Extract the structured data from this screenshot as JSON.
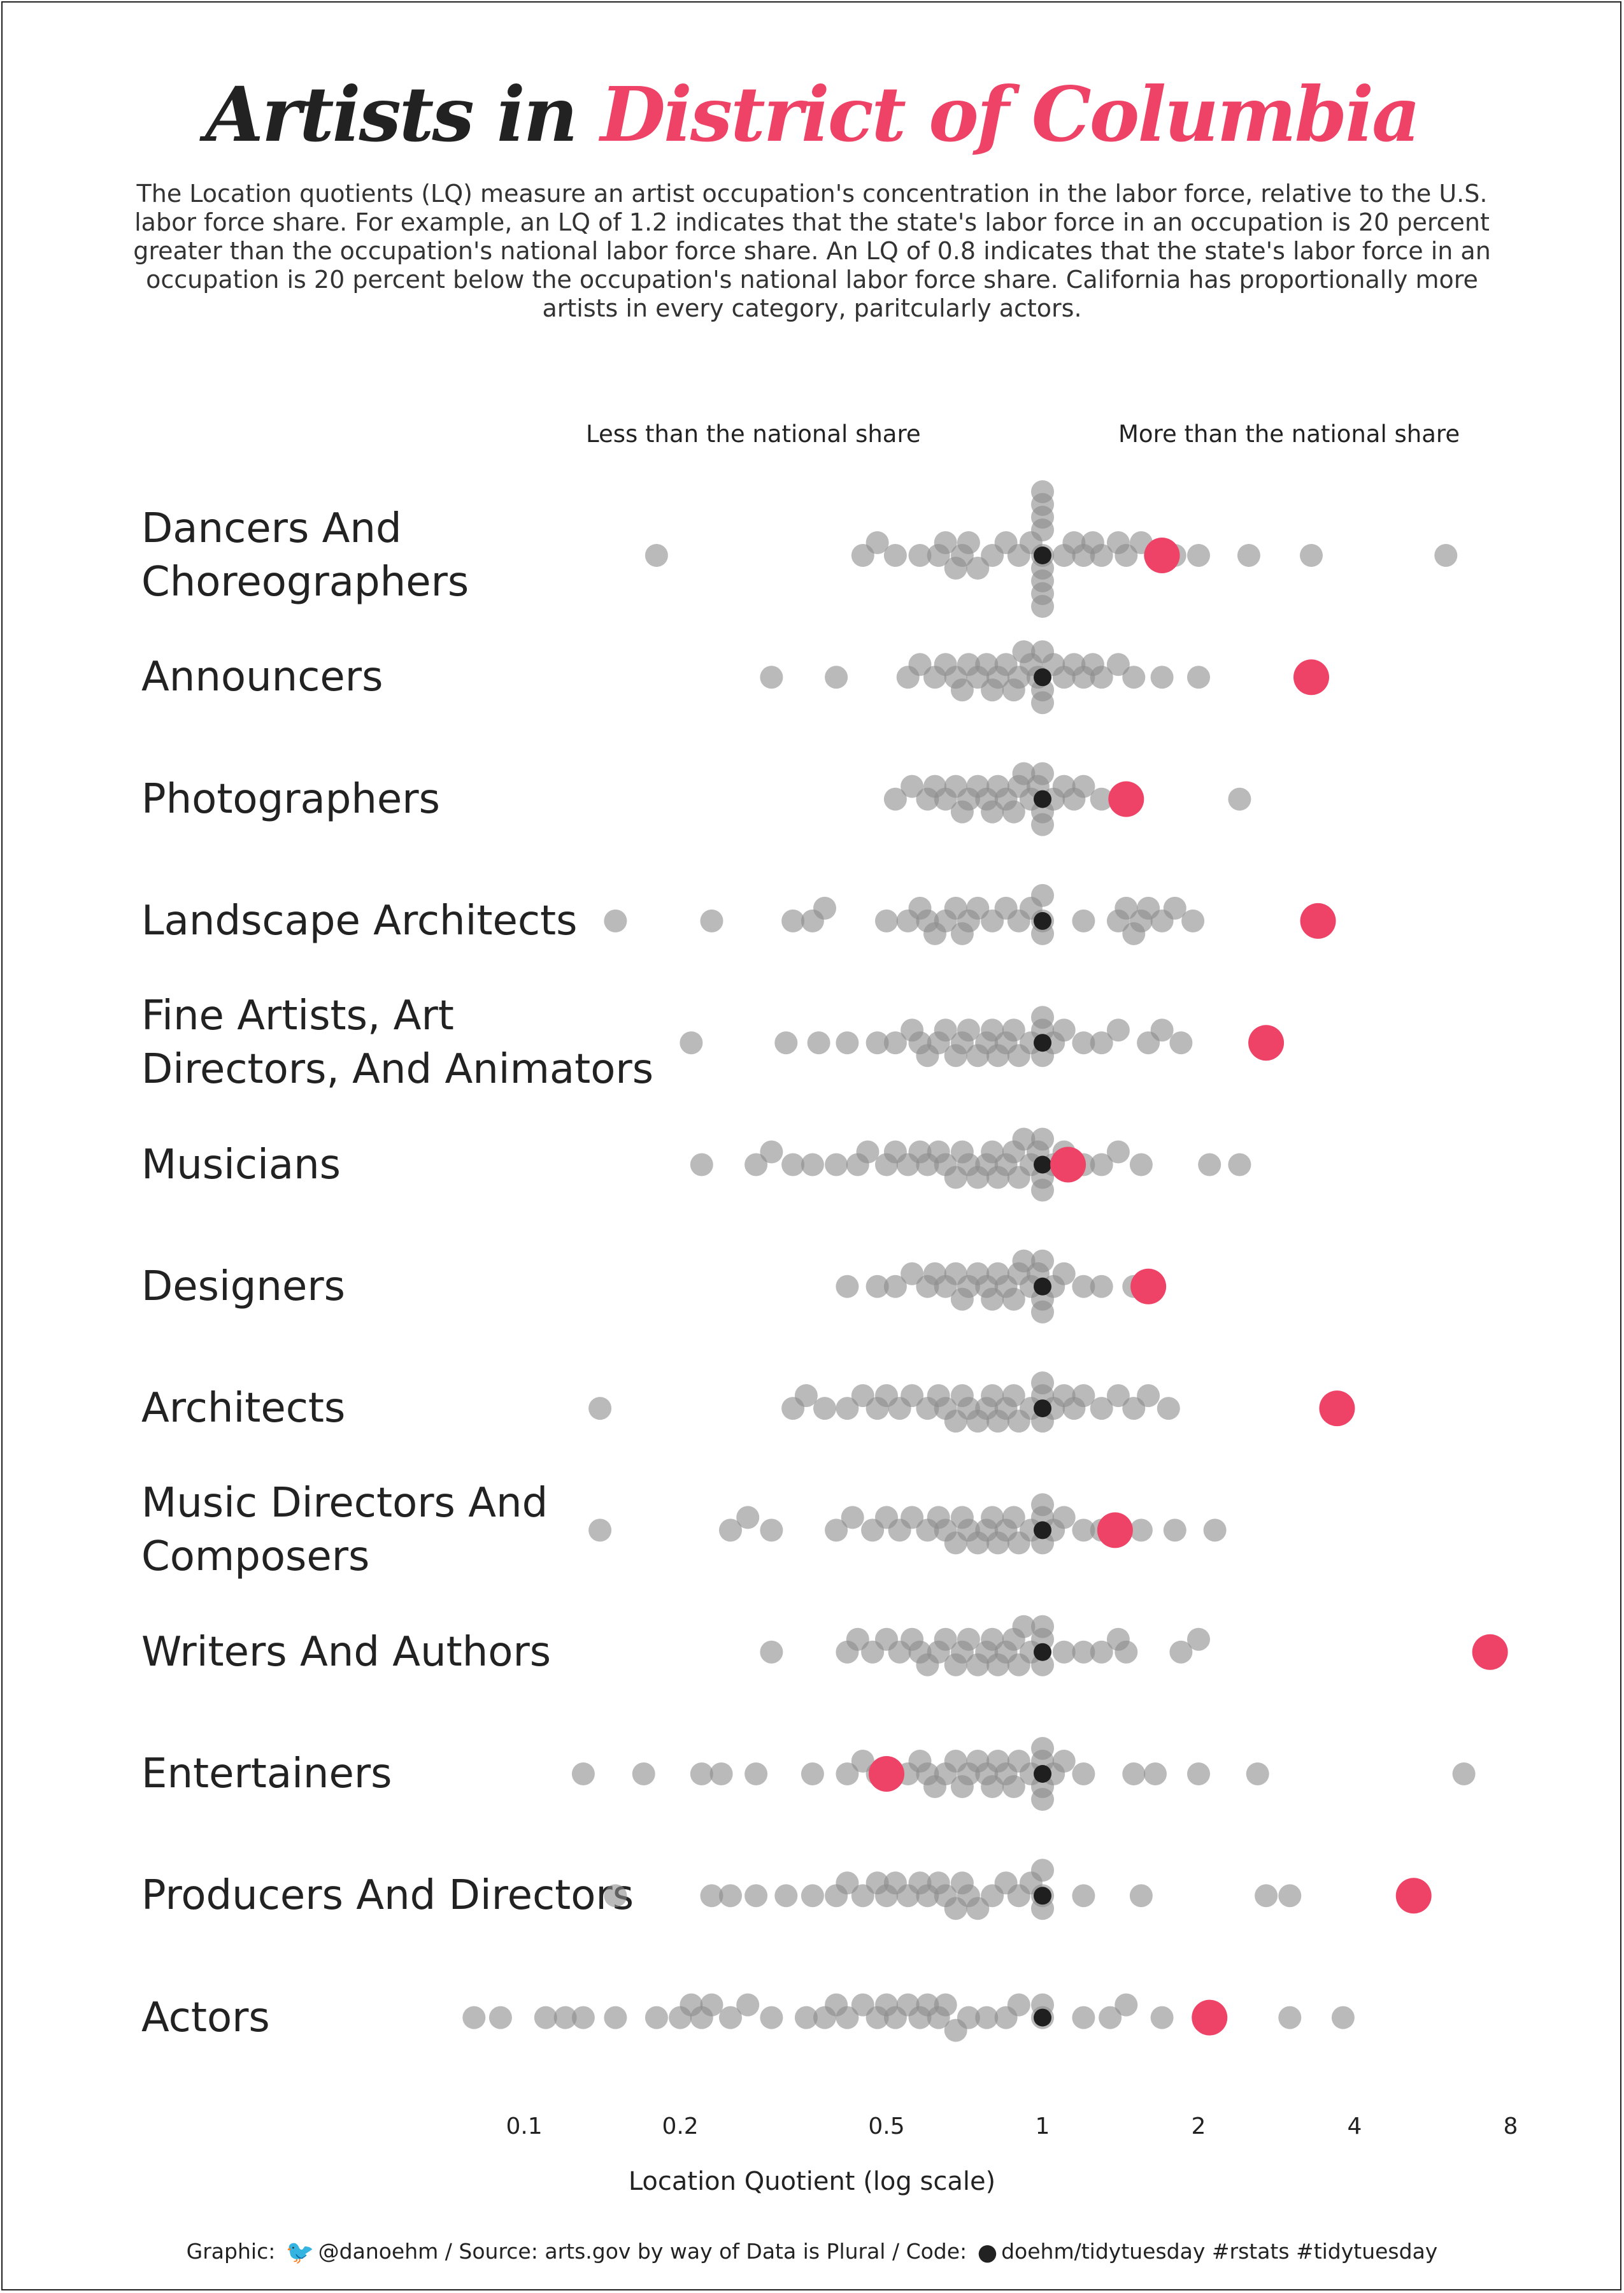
{
  "title": {
    "part1": "Artists in",
    "part2": "District of Columbia"
  },
  "subtitle": "The Location quotients (LQ) measure an artist occupation's concentration in the labor force, relative to the U.S. labor force share. For example, an LQ of 1.2 indicates that the state's labor force in an occupation is 20 percent greater than the occupation's national labor force share. An LQ of 0.8 indicates that the state's labor force in an occupation is 20 percent below the occupation's national labor force share. California has proportionally more artists in every category, paritcularly actors.",
  "direction": {
    "less": "Less than the national share",
    "more": "More than the national share"
  },
  "caption": {
    "graphic": "Graphic:",
    "twitter_icon": "twitter-bird-icon",
    "handle": "@danoehm / Source: arts.gov by way of Data is Plural / Code:",
    "github_icon": "github-icon",
    "code": "doehm/tidytuesday #rstats #tidytuesday"
  },
  "colors": {
    "highlight": "#ee4266",
    "others": "#8c8c8c",
    "reference": "#1f1f1f",
    "text": "#222222"
  },
  "chart_data": {
    "type": "scatter",
    "subtype": "beeswarm",
    "xlabel": "Location Quotient (log scale)",
    "x_scale": "log",
    "x_ticks": [
      "0.1",
      "0.2",
      "0.5",
      "1",
      "2",
      "4",
      "8"
    ],
    "xlim": [
      0.08,
      9
    ],
    "grid": false,
    "reference_value": 1,
    "highlight_state": "District of Columbia",
    "categories": [
      {
        "label": "Dancers And Choreographers",
        "highlight": 1.7,
        "others": [
          0.18,
          0.45,
          0.48,
          0.52,
          0.58,
          0.63,
          0.65,
          0.68,
          0.7,
          0.72,
          0.75,
          0.8,
          0.85,
          0.9,
          0.95,
          1,
          1,
          1,
          1,
          1,
          1,
          1,
          1,
          1,
          1.1,
          1.15,
          1.2,
          1.25,
          1.3,
          1.4,
          1.45,
          1.55,
          1.65,
          1.8,
          2,
          2.5,
          3.3,
          6
        ]
      },
      {
        "label": "Announcers",
        "highlight": 3.3,
        "others": [
          0.3,
          0.4,
          0.55,
          0.58,
          0.62,
          0.65,
          0.68,
          0.7,
          0.72,
          0.75,
          0.78,
          0.8,
          0.82,
          0.85,
          0.88,
          0.9,
          0.92,
          0.95,
          0.98,
          1,
          1,
          1,
          1.05,
          1.1,
          1.15,
          1.2,
          1.25,
          1.3,
          1.4,
          1.5,
          1.7,
          2
        ]
      },
      {
        "label": "Photographers",
        "highlight": 1.45,
        "others": [
          0.52,
          0.56,
          0.6,
          0.62,
          0.65,
          0.68,
          0.7,
          0.72,
          0.75,
          0.78,
          0.8,
          0.82,
          0.85,
          0.88,
          0.9,
          0.92,
          0.95,
          0.98,
          1,
          1,
          1,
          1.05,
          1.1,
          1.15,
          1.2,
          1.3,
          2.4
        ]
      },
      {
        "label": "Landscape Architects",
        "highlight": 3.4,
        "others": [
          0.15,
          0.23,
          0.33,
          0.36,
          0.38,
          0.5,
          0.55,
          0.58,
          0.6,
          0.62,
          0.65,
          0.68,
          0.7,
          0.72,
          0.75,
          0.8,
          0.85,
          0.9,
          0.95,
          1,
          1,
          1,
          1.2,
          1.4,
          1.45,
          1.5,
          1.55,
          1.6,
          1.7,
          1.8,
          1.95
        ]
      },
      {
        "label": "Fine Artists, Art Directors, And Animators",
        "highlight": 2.7,
        "others": [
          0.21,
          0.32,
          0.37,
          0.42,
          0.48,
          0.52,
          0.56,
          0.58,
          0.6,
          0.63,
          0.65,
          0.68,
          0.7,
          0.72,
          0.75,
          0.78,
          0.8,
          0.82,
          0.85,
          0.88,
          0.9,
          0.95,
          1,
          1,
          1,
          1.05,
          1.1,
          1.2,
          1.3,
          1.4,
          1.6,
          1.7,
          1.85
        ]
      },
      {
        "label": "Musicians",
        "highlight": 1.12,
        "others": [
          0.22,
          0.28,
          0.3,
          0.33,
          0.36,
          0.4,
          0.44,
          0.46,
          0.5,
          0.52,
          0.55,
          0.58,
          0.6,
          0.63,
          0.65,
          0.68,
          0.7,
          0.72,
          0.75,
          0.78,
          0.8,
          0.82,
          0.85,
          0.88,
          0.9,
          0.92,
          0.95,
          0.98,
          1,
          1,
          1,
          1.05,
          1.1,
          1.2,
          1.3,
          1.4,
          1.55,
          2.1,
          2.4
        ]
      },
      {
        "label": "Designers",
        "highlight": 1.6,
        "others": [
          0.42,
          0.48,
          0.52,
          0.56,
          0.6,
          0.62,
          0.65,
          0.68,
          0.7,
          0.72,
          0.75,
          0.78,
          0.8,
          0.82,
          0.85,
          0.88,
          0.9,
          0.92,
          0.95,
          0.98,
          1,
          1,
          1,
          1.05,
          1.1,
          1.2,
          1.3,
          1.5
        ]
      },
      {
        "label": "Architects",
        "highlight": 3.7,
        "others": [
          0.14,
          0.33,
          0.35,
          0.38,
          0.42,
          0.45,
          0.48,
          0.5,
          0.53,
          0.56,
          0.6,
          0.63,
          0.65,
          0.68,
          0.7,
          0.72,
          0.75,
          0.78,
          0.8,
          0.82,
          0.85,
          0.88,
          0.9,
          0.95,
          1,
          1,
          1,
          1.05,
          1.1,
          1.15,
          1.2,
          1.3,
          1.4,
          1.5,
          1.6,
          1.75
        ]
      },
      {
        "label": "Music Directors And Composers",
        "highlight": 1.38,
        "others": [
          0.14,
          0.25,
          0.27,
          0.3,
          0.4,
          0.43,
          0.47,
          0.5,
          0.53,
          0.56,
          0.6,
          0.63,
          0.65,
          0.68,
          0.7,
          0.72,
          0.75,
          0.78,
          0.8,
          0.82,
          0.85,
          0.88,
          0.9,
          0.95,
          1,
          1,
          1,
          1.05,
          1.1,
          1.2,
          1.3,
          1.55,
          1.8,
          2.15
        ]
      },
      {
        "label": "Writers And Authors",
        "highlight": 7.3,
        "others": [
          0.3,
          0.42,
          0.44,
          0.47,
          0.5,
          0.53,
          0.56,
          0.58,
          0.6,
          0.63,
          0.65,
          0.68,
          0.7,
          0.72,
          0.75,
          0.78,
          0.8,
          0.82,
          0.85,
          0.88,
          0.9,
          0.92,
          0.95,
          1,
          1,
          1,
          1.1,
          1.2,
          1.3,
          1.4,
          1.45,
          1.85,
          2
        ]
      },
      {
        "label": "Entertainers",
        "highlight": 0.5,
        "others": [
          0.13,
          0.17,
          0.22,
          0.24,
          0.28,
          0.36,
          0.42,
          0.45,
          0.48,
          0.55,
          0.58,
          0.6,
          0.62,
          0.65,
          0.68,
          0.7,
          0.72,
          0.75,
          0.78,
          0.8,
          0.82,
          0.85,
          0.88,
          0.9,
          0.95,
          1,
          1,
          1,
          1,
          1.05,
          1.1,
          1.2,
          1.5,
          1.65,
          2,
          2.6,
          6.5
        ]
      },
      {
        "label": "Producers And Directors",
        "highlight": 5.2,
        "others": [
          0.15,
          0.23,
          0.25,
          0.28,
          0.32,
          0.36,
          0.4,
          0.42,
          0.45,
          0.48,
          0.5,
          0.52,
          0.55,
          0.58,
          0.6,
          0.63,
          0.65,
          0.68,
          0.7,
          0.72,
          0.75,
          0.8,
          0.85,
          0.9,
          0.95,
          1,
          1,
          1,
          1.2,
          1.55,
          2.7,
          3
        ]
      },
      {
        "label": "Actors",
        "highlight": 2.1,
        "others": [
          0.08,
          0.09,
          0.11,
          0.12,
          0.13,
          0.15,
          0.18,
          0.2,
          0.21,
          0.22,
          0.23,
          0.25,
          0.27,
          0.3,
          0.35,
          0.38,
          0.4,
          0.42,
          0.45,
          0.48,
          0.5,
          0.52,
          0.55,
          0.58,
          0.6,
          0.63,
          0.65,
          0.68,
          0.72,
          0.78,
          0.85,
          0.9,
          1,
          1,
          1.2,
          1.35,
          1.45,
          1.7,
          3,
          3.8
        ]
      }
    ]
  }
}
